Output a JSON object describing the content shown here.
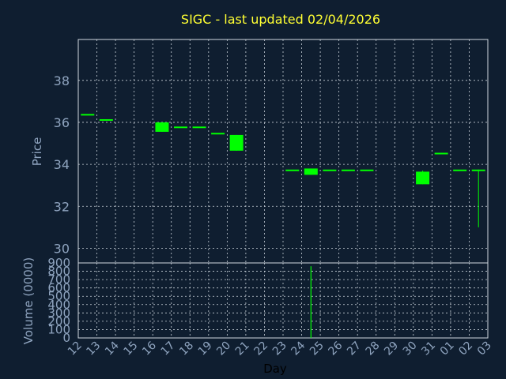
{
  "title": "SIGC - last updated 02/04/2026",
  "colors": {
    "background": "#0f1e30",
    "plot_border": "#d0d8e0",
    "grid": "#c8d0d8",
    "axis_text": "#8fa4bf",
    "title": "#ffff33",
    "candle": "#00ff00"
  },
  "chart_data": [
    {
      "type": "candlestick",
      "ylabel": "Price",
      "ylim": [
        29.3,
        39.95
      ],
      "yticks": [
        30,
        32,
        34,
        36,
        38
      ],
      "grid": true,
      "days": [
        "12",
        "13",
        "14",
        "15",
        "16",
        "17",
        "18",
        "19",
        "20",
        "21",
        "22",
        "23",
        "24",
        "25",
        "26",
        "27",
        "28",
        "29",
        "30",
        "31",
        "01",
        "02",
        "03"
      ],
      "candles": [
        {
          "day": "12",
          "open": 36.4,
          "high": 36.4,
          "low": 36.4,
          "close": 36.4
        },
        {
          "day": "13",
          "open": 36.15,
          "high": 36.15,
          "low": 36.15,
          "close": 36.15
        },
        {
          "day": "16",
          "open": 35.55,
          "high": 36.0,
          "low": 35.55,
          "close": 36.0
        },
        {
          "day": "17",
          "open": 35.8,
          "high": 35.8,
          "low": 35.8,
          "close": 35.8
        },
        {
          "day": "18",
          "open": 35.8,
          "high": 35.8,
          "low": 35.8,
          "close": 35.8
        },
        {
          "day": "19",
          "open": 35.5,
          "high": 35.5,
          "low": 35.5,
          "close": 35.5
        },
        {
          "day": "20",
          "open": 34.65,
          "high": 35.4,
          "low": 34.65,
          "close": 35.4
        },
        {
          "day": "23",
          "open": 33.75,
          "high": 33.75,
          "low": 33.75,
          "close": 33.75
        },
        {
          "day": "24",
          "open": 33.5,
          "high": 33.8,
          "low": 33.5,
          "close": 33.8
        },
        {
          "day": "25",
          "open": 33.75,
          "high": 33.75,
          "low": 33.75,
          "close": 33.75
        },
        {
          "day": "26",
          "open": 33.75,
          "high": 33.75,
          "low": 33.75,
          "close": 33.75
        },
        {
          "day": "27",
          "open": 33.75,
          "high": 33.75,
          "low": 33.75,
          "close": 33.75
        },
        {
          "day": "30",
          "open": 33.05,
          "high": 33.7,
          "low": 33.05,
          "close": 33.65
        },
        {
          "day": "31",
          "open": 34.55,
          "high": 34.55,
          "low": 34.55,
          "close": 34.55
        },
        {
          "day": "01",
          "open": 33.75,
          "high": 33.75,
          "low": 33.75,
          "close": 33.75
        },
        {
          "day": "02",
          "open": 33.75,
          "high": 33.75,
          "low": 31.0,
          "close": 33.75
        }
      ]
    },
    {
      "type": "bar",
      "ylabel": "Volume (0000)",
      "xlabel": "Day",
      "ylim": [
        0,
        900
      ],
      "yticks": [
        0,
        100,
        200,
        300,
        400,
        500,
        600,
        700,
        800,
        900
      ],
      "grid": true,
      "categories": [
        "12",
        "13",
        "14",
        "15",
        "16",
        "17",
        "18",
        "19",
        "20",
        "21",
        "22",
        "23",
        "24",
        "25",
        "26",
        "27",
        "28",
        "29",
        "30",
        "31",
        "01",
        "02",
        "03"
      ],
      "values": [
        0,
        0,
        0,
        0,
        0,
        0,
        0,
        0,
        0,
        0,
        0,
        0,
        860,
        0,
        0,
        0,
        0,
        0,
        0,
        0,
        0,
        0,
        0
      ]
    }
  ]
}
